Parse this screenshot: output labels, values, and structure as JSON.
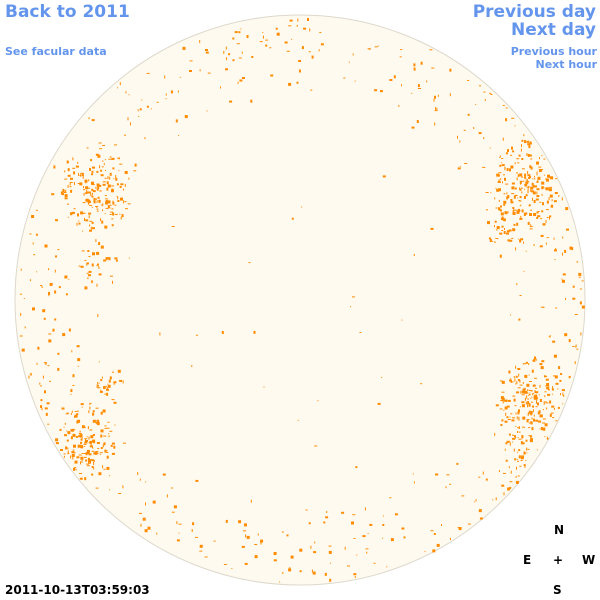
{
  "nav": {
    "back_label": "Back to 2011",
    "facular_label": "See facular data",
    "prev_day_label": "Previous day",
    "next_day_label": "Next day",
    "prev_hour_label": "Previous hour",
    "next_hour_label": "Next hour"
  },
  "timestamp": "2011-10-13T03:59:03",
  "compass": {
    "north": "N",
    "east": "E",
    "center": "+",
    "west": "W",
    "south": "S"
  },
  "colors": {
    "link": "#6495ed",
    "disk_fill": "#fffaf0",
    "disk_edge": "#ddd8cc",
    "spot": "#ff8c00"
  },
  "disk_icon": "solar-disk"
}
